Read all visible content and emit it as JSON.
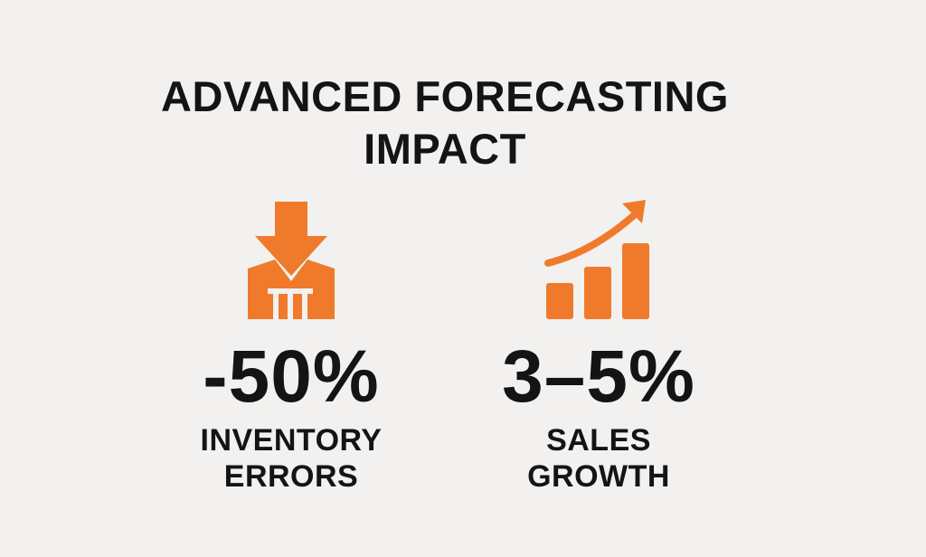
{
  "title": {
    "line1": "ADVANCED FORECASTING",
    "line2": "IMPACT"
  },
  "accent_color": "#f07a2c",
  "stats": [
    {
      "icon": "down-arrow-warehouse-icon",
      "value": "-50%",
      "label_line1": "INVENTORY",
      "label_line2": "ERRORS"
    },
    {
      "icon": "growth-bar-chart-icon",
      "value": "3–5%",
      "label_line1": "SALES",
      "label_line2": "GROWTH"
    }
  ]
}
